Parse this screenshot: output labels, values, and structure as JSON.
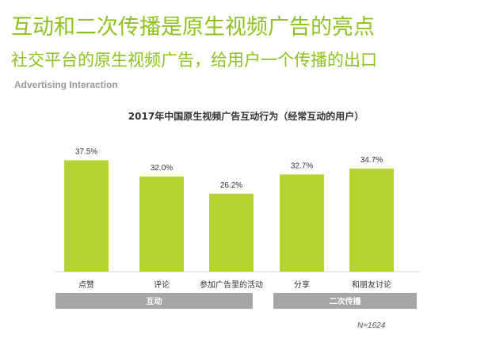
{
  "header": {
    "title": "互动和二次传播是原生视频广告的亮点",
    "subtitle": "社交平台的原生视频广告，给用户一个传播的出口",
    "section_label": "Advertising Interaction"
  },
  "colors": {
    "accent": "#8dc21f",
    "bar": "#b5d333",
    "group_band": "#a6a6a6",
    "text": "#333333"
  },
  "chart_data": {
    "type": "bar",
    "title": "2017年中国原生视频广告互动行为（经常互动的用户）",
    "categories": [
      "点赞",
      "评论",
      "参加广告里的活动",
      "分享",
      "和朋友讨论"
    ],
    "values": [
      37.5,
      32.0,
      26.2,
      32.7,
      34.7
    ],
    "value_labels": [
      "37.5%",
      "32.0%",
      "26.2%",
      "32.7%",
      "34.7%"
    ],
    "groups": [
      {
        "label": "互动",
        "categories": [
          0,
          1,
          2
        ]
      },
      {
        "label": "二次传播",
        "categories": [
          3,
          4
        ]
      }
    ],
    "ylim": [
      0,
      40
    ],
    "xlabel": "",
    "ylabel": "",
    "grid": false,
    "legend": "none"
  },
  "footnote": "N=1624"
}
